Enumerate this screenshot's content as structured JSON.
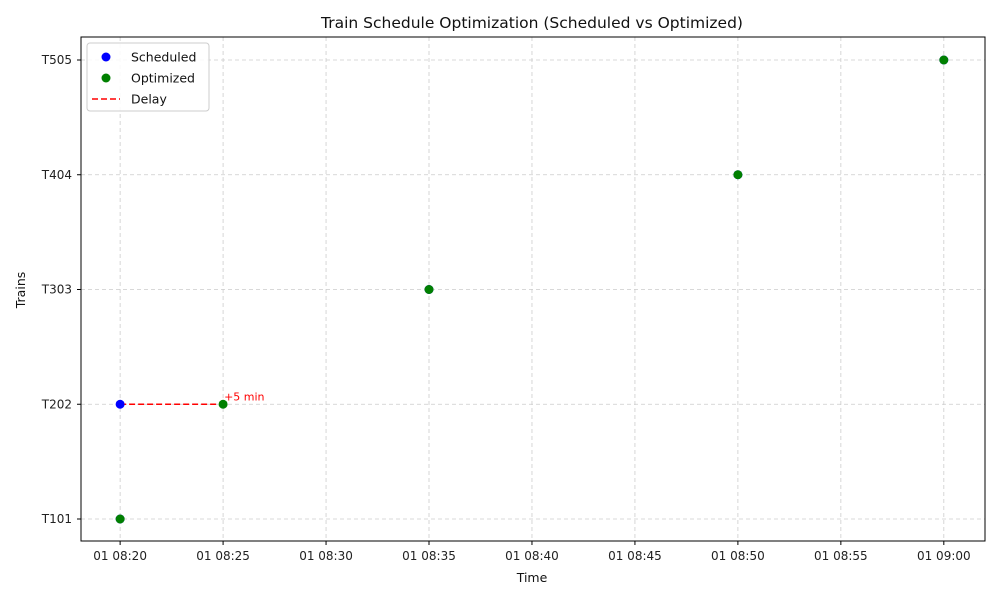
{
  "chart_data": {
    "type": "scatter",
    "title": "Train Schedule Optimization (Scheduled vs Optimized)",
    "xlabel": "Time",
    "ylabel": "Trains",
    "categories": [
      "T101",
      "T202",
      "T303",
      "T404",
      "T505"
    ],
    "x_ticks": [
      "01 08:20",
      "01 08:25",
      "01 08:30",
      "01 08:35",
      "01 08:40",
      "01 08:45",
      "01 08:50",
      "01 08:55",
      "01 09:00"
    ],
    "x_tick_minutes": [
      500,
      505,
      510,
      515,
      520,
      525,
      530,
      535,
      540
    ],
    "xlim_minutes": [
      498.1,
      542
    ],
    "grid": true,
    "legend_position": "top-left",
    "series": [
      {
        "name": "Scheduled",
        "color": "#0000ff",
        "points": [
          {
            "train": "T101",
            "time": "08:20",
            "minutes": 500
          },
          {
            "train": "T202",
            "time": "08:20",
            "minutes": 500
          },
          {
            "train": "T303",
            "time": "08:35",
            "minutes": 515
          },
          {
            "train": "T404",
            "time": "08:50",
            "minutes": 530
          },
          {
            "train": "T505",
            "time": "09:00",
            "minutes": 540
          }
        ]
      },
      {
        "name": "Optimized",
        "color": "#008000",
        "points": [
          {
            "train": "T101",
            "time": "08:20",
            "minutes": 500
          },
          {
            "train": "T202",
            "time": "08:25",
            "minutes": 505
          },
          {
            "train": "T303",
            "time": "08:35",
            "minutes": 515
          },
          {
            "train": "T404",
            "time": "08:50",
            "minutes": 530
          },
          {
            "train": "T505",
            "time": "09:00",
            "minutes": 540
          }
        ]
      }
    ],
    "delays": [
      {
        "name": "Delay",
        "color": "#ff0000",
        "train": "T202",
        "from_minutes": 500,
        "to_minutes": 505,
        "label": "+5 min"
      }
    ]
  }
}
